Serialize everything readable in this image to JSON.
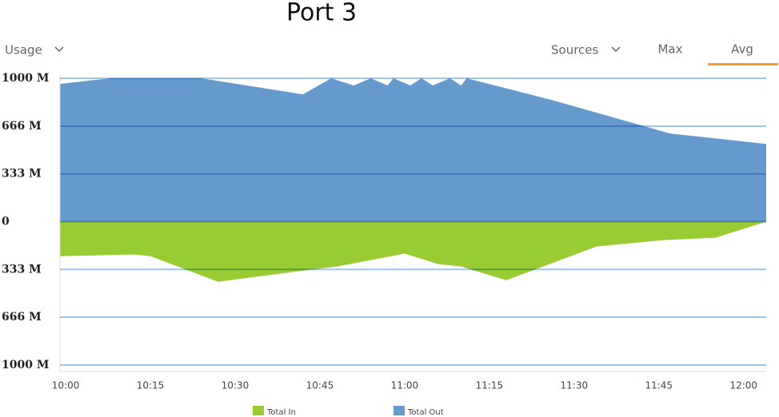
{
  "controls": {
    "usage": "Usage",
    "sources": "Sources",
    "max": "Max",
    "avg": "Avg"
  },
  "chart_data": {
    "type": "area",
    "title": "Port 3",
    "xlim": [
      "09:59",
      "12:04"
    ],
    "xticks": [
      "10:00",
      "10:15",
      "10:30",
      "10:45",
      "11:00",
      "11:15",
      "11:30",
      "11:45",
      "12:00"
    ],
    "ylim": [
      -1000,
      1000
    ],
    "yticks": [
      {
        "value": 1000,
        "label": "1000 M"
      },
      {
        "value": 666,
        "label": "666 M"
      },
      {
        "value": 333,
        "label": "333 M"
      },
      0,
      {
        "value": -333,
        "label": "333 M"
      },
      {
        "value": -666,
        "label": "666 M"
      },
      {
        "value": -1000,
        "label": "1000 M"
      }
    ],
    "grid": true,
    "legend": "bottom",
    "series": [
      {
        "name": "Total In",
        "color": "#99cc33",
        "x": [
          "09:59",
          "10:12",
          "10:15",
          "10:27",
          "10:42",
          "10:48",
          "11:00",
          "11:06",
          "11:10",
          "11:18",
          "11:34",
          "11:46",
          "11:55",
          "12:04"
        ],
        "values": [
          -240,
          -229,
          -240,
          -419,
          -341,
          -313,
          -223,
          -296,
          -313,
          -408,
          -173,
          -128,
          -112,
          0
        ]
      },
      {
        "name": "Total Out",
        "color": "#6699cc",
        "x": [
          "09:59",
          "10:08",
          "10:24",
          "10:42",
          "10:47",
          "10:51",
          "10:54",
          "10:57",
          "10:58",
          "11:01",
          "11:03",
          "11:05",
          "11:08",
          "11:10",
          "11:11",
          "11:26",
          "11:41",
          "11:47",
          "12:04"
        ],
        "values": [
          961,
          1000,
          1000,
          888,
          1000,
          950,
          1000,
          950,
          1000,
          950,
          1000,
          950,
          1000,
          950,
          1000,
          849,
          682,
          615,
          542
        ]
      }
    ]
  }
}
